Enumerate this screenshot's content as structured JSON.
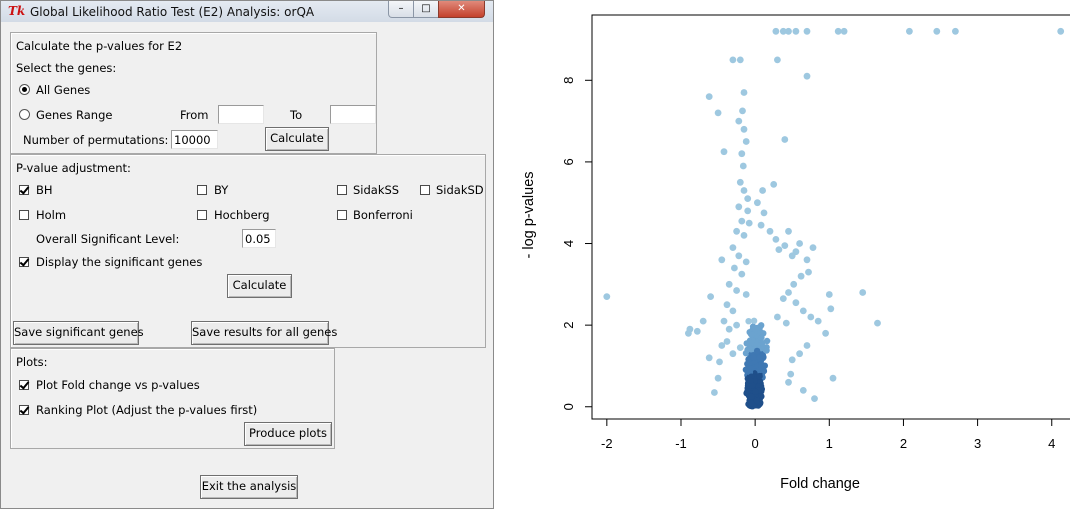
{
  "window": {
    "title": "Global Likelihood Ratio Test (E2) Analysis: orQA",
    "app_icon": "Tk",
    "controls": {
      "minimize": "minimize-icon",
      "maximize": "maximize-icon",
      "close": "close-icon"
    }
  },
  "calc_section": {
    "heading": "Calculate the p-values for E2",
    "select_label": "Select the genes:",
    "all_genes": {
      "label": "All Genes",
      "selected": true
    },
    "genes_range": {
      "label": "Genes Range",
      "selected": false
    },
    "from_label": "From",
    "from_value": "",
    "to_label": "To",
    "to_value": "",
    "permutations_label": "Number of permutations:",
    "permutations_value": "10000",
    "calculate_button": "Calculate"
  },
  "adjust_section": {
    "heading": "P-value adjustment:",
    "methods": [
      {
        "label": "BH",
        "checked": true
      },
      {
        "label": "BY",
        "checked": false
      },
      {
        "label": "SidakSS",
        "checked": false
      },
      {
        "label": "SidakSD",
        "checked": false
      },
      {
        "label": "Holm",
        "checked": false
      },
      {
        "label": "Hochberg",
        "checked": false
      },
      {
        "label": "Bonferroni",
        "checked": false
      }
    ],
    "significance_label": "Overall Significant Level:",
    "significance_value": "0.05",
    "display_significant": {
      "label": "Display the significant genes",
      "checked": true
    },
    "calculate_button": "Calculate",
    "save_significant_button": "Save significant genes",
    "save_all_button": "Save results for all genes"
  },
  "plots_section": {
    "heading": "Plots:",
    "fold_change_plot": {
      "label": "Plot Fold change vs p-values",
      "checked": true
    },
    "ranking_plot": {
      "label": "Ranking Plot (Adjust the p-values first)",
      "checked": true
    },
    "produce_button": "Produce plots"
  },
  "exit_button": "Exit the analysis",
  "chart_data": {
    "type": "scatter",
    "xlabel": "Fold change",
    "ylabel": "- log p-values",
    "xlim": [
      -2.2,
      4.3
    ],
    "ylim": [
      -0.3,
      9.6
    ],
    "xticks": [
      "-2",
      "-1",
      "0",
      "1",
      "2",
      "3",
      "4"
    ],
    "yticks": [
      "0",
      "2",
      "4",
      "6",
      "8"
    ],
    "marker_color": "#9ec8e0",
    "dense_color": "#1f4f8a",
    "points": [
      [
        -2.0,
        2.7
      ],
      [
        -0.9,
        1.8
      ],
      [
        -0.88,
        1.9
      ],
      [
        -0.78,
        1.85
      ],
      [
        -0.6,
        2.7
      ],
      [
        -0.7,
        2.1
      ],
      [
        -0.62,
        1.2
      ],
      [
        -0.55,
        0.35
      ],
      [
        -0.5,
        0.7
      ],
      [
        -0.45,
        3.6
      ],
      [
        -0.48,
        1.1
      ],
      [
        -0.42,
        6.25
      ],
      [
        -0.62,
        7.6
      ],
      [
        -0.5,
        7.2
      ],
      [
        -0.3,
        8.5
      ],
      [
        -0.2,
        8.5
      ],
      [
        -0.15,
        7.7
      ],
      [
        -0.17,
        7.25
      ],
      [
        -0.22,
        7.0
      ],
      [
        -0.15,
        6.8
      ],
      [
        -0.12,
        6.5
      ],
      [
        -0.18,
        6.2
      ],
      [
        -0.16,
        5.9
      ],
      [
        -0.2,
        5.5
      ],
      [
        -0.15,
        5.3
      ],
      [
        -0.1,
        5.1
      ],
      [
        -0.22,
        4.9
      ],
      [
        -0.1,
        4.8
      ],
      [
        -0.18,
        4.55
      ],
      [
        -0.08,
        4.5
      ],
      [
        -0.25,
        4.3
      ],
      [
        -0.15,
        4.2
      ],
      [
        -0.3,
        3.9
      ],
      [
        -0.22,
        3.7
      ],
      [
        -0.12,
        3.55
      ],
      [
        -0.28,
        3.4
      ],
      [
        -0.18,
        3.25
      ],
      [
        -0.35,
        3.0
      ],
      [
        -0.25,
        2.85
      ],
      [
        -0.12,
        2.75
      ],
      [
        -0.38,
        2.5
      ],
      [
        -0.3,
        2.35
      ],
      [
        -0.42,
        2.1
      ],
      [
        -0.35,
        1.9
      ],
      [
        -0.25,
        2.0
      ],
      [
        -0.45,
        1.5
      ],
      [
        -0.38,
        1.6
      ],
      [
        -0.3,
        1.3
      ],
      [
        -0.2,
        1.45
      ],
      [
        0.25,
        5.45
      ],
      [
        0.1,
        5.3
      ],
      [
        0.03,
        5.0
      ],
      [
        0.12,
        4.75
      ],
      [
        0.08,
        4.45
      ],
      [
        0.2,
        4.3
      ],
      [
        0.28,
        4.1
      ],
      [
        0.32,
        3.85
      ],
      [
        0.4,
        3.95
      ],
      [
        0.45,
        4.3
      ],
      [
        0.5,
        3.7
      ],
      [
        0.55,
        3.8
      ],
      [
        0.6,
        4.0
      ],
      [
        0.7,
        3.6
      ],
      [
        0.78,
        3.9
      ],
      [
        0.72,
        3.3
      ],
      [
        0.62,
        3.2
      ],
      [
        0.52,
        3.0
      ],
      [
        0.45,
        2.8
      ],
      [
        0.38,
        2.65
      ],
      [
        0.55,
        2.55
      ],
      [
        0.65,
        2.35
      ],
      [
        0.3,
        2.2
      ],
      [
        0.42,
        2.05
      ],
      [
        0.75,
        2.2
      ],
      [
        0.85,
        2.1
      ],
      [
        0.7,
        1.5
      ],
      [
        0.6,
        1.3
      ],
      [
        0.5,
        1.15
      ],
      [
        0.48,
        0.8
      ],
      [
        0.45,
        0.6
      ],
      [
        0.65,
        0.4
      ],
      [
        0.8,
        0.2
      ],
      [
        1.0,
        2.75
      ],
      [
        1.02,
        2.4
      ],
      [
        1.05,
        0.7
      ],
      [
        1.45,
        2.8
      ],
      [
        1.65,
        2.05
      ],
      [
        0.95,
        1.8
      ],
      [
        0.4,
        6.55
      ],
      [
        0.3,
        8.5
      ],
      [
        0.7,
        8.1
      ],
      [
        0.28,
        9.2
      ],
      [
        0.38,
        9.2
      ],
      [
        0.45,
        9.2
      ],
      [
        0.55,
        9.2
      ],
      [
        0.7,
        9.2
      ],
      [
        1.12,
        9.2
      ],
      [
        1.2,
        9.2
      ],
      [
        2.08,
        9.2
      ],
      [
        2.45,
        9.2
      ],
      [
        2.7,
        9.2
      ],
      [
        4.12,
        9.2
      ]
    ]
  }
}
